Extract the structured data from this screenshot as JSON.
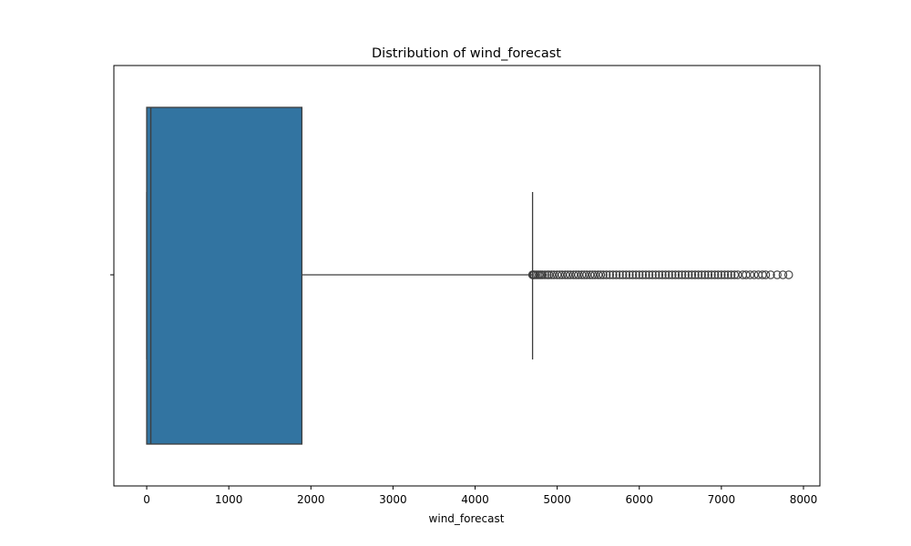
{
  "chart_data": {
    "type": "boxplot",
    "orientation": "horizontal",
    "title": "Distribution of wind_forecast",
    "xlabel": "wind_forecast",
    "ylabel": "",
    "xlim": [
      -400,
      8200
    ],
    "x_ticks": [
      0,
      1000,
      2000,
      3000,
      4000,
      5000,
      6000,
      7000,
      8000
    ],
    "box": {
      "whisker_low": 0,
      "q1": 0,
      "median": 50,
      "q3": 1890,
      "whisker_high": 4700
    },
    "outliers": [
      4700,
      4710,
      4720,
      4740,
      4760,
      4780,
      4800,
      4820,
      4850,
      4880,
      4900,
      4930,
      4960,
      5000,
      5030,
      5060,
      5100,
      5130,
      5160,
      5200,
      5230,
      5260,
      5300,
      5330,
      5360,
      5400,
      5430,
      5460,
      5500,
      5530,
      5560,
      5600,
      5640,
      5680,
      5720,
      5760,
      5800,
      5840,
      5880,
      5920,
      5960,
      6000,
      6040,
      6080,
      6120,
      6160,
      6200,
      6240,
      6280,
      6320,
      6360,
      6400,
      6440,
      6480,
      6520,
      6560,
      6600,
      6640,
      6680,
      6720,
      6760,
      6800,
      6840,
      6880,
      6920,
      6960,
      7000,
      7040,
      7080,
      7120,
      7160,
      7200,
      7260,
      7300,
      7350,
      7400,
      7450,
      7500,
      7540,
      7600,
      7680,
      7750,
      7820
    ],
    "colors": {
      "box_fill": "#3274a1",
      "lines": "#3d3d3d",
      "axes": "#000000"
    },
    "grid": false
  }
}
